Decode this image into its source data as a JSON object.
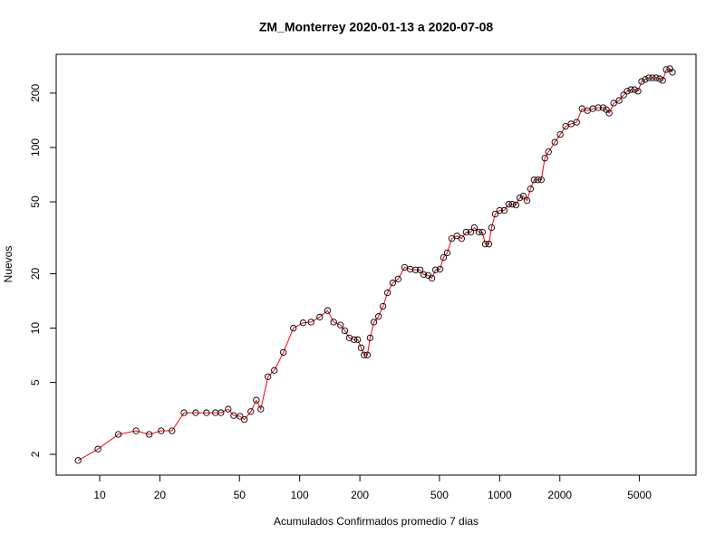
{
  "chart_data": {
    "type": "line",
    "title": "ZM_Monterrey 2020-01-13 a 2020-07-08",
    "x_label": "Acumulados Confirmados promedio  7  dias",
    "y_label": "Nuevos",
    "log_x": true,
    "log_y": true,
    "color": "#ff0000",
    "marker_color": "#000000",
    "xlim": [
      6.06,
      9590
    ],
    "ylim": [
      1.535,
      328
    ],
    "xticks": [
      10,
      20,
      50,
      100,
      200,
      500,
      1000,
      2000,
      5000
    ],
    "yticks": [
      2,
      5,
      10,
      20,
      50,
      100,
      200
    ],
    "x": [
      7.8,
      9.8,
      12.4,
      15.2,
      17.7,
      20.3,
      23.0,
      26.4,
      30.2,
      34.2,
      37.9,
      40.4,
      43.9,
      46.8,
      50.3,
      52.9,
      57.0,
      60.7,
      63.9,
      69.4,
      74.7,
      82.9,
      93,
      104,
      114,
      126,
      138,
      148,
      160,
      168,
      177,
      187,
      195,
      203,
      210,
      218,
      225,
      235,
      248,
      261,
      275,
      292,
      311,
      335,
      357,
      380,
      400,
      417,
      439,
      458,
      478,
      503,
      524,
      547,
      576,
      612,
      645,
      680,
      717,
      747,
      787,
      820,
      847,
      883,
      911,
      950,
      1000,
      1054,
      1110,
      1157,
      1207,
      1260,
      1313,
      1370,
      1427,
      1487,
      1550,
      1615,
      1683,
      1754,
      1888,
      2008,
      2138,
      2275,
      2426,
      2582,
      2748,
      2925,
      3113,
      3292,
      3417,
      3528,
      3717,
      3956,
      4168,
      4345,
      4530,
      4723,
      4918,
      5127,
      5345,
      5572,
      5809,
      6056,
      6312,
      6531,
      6808,
      7100,
      7311
    ],
    "values": [
      1.85,
      2.14,
      2.58,
      2.7,
      2.58,
      2.7,
      2.7,
      3.4,
      3.4,
      3.4,
      3.4,
      3.4,
      3.56,
      3.28,
      3.25,
      3.12,
      3.45,
      3.99,
      3.56,
      5.38,
      5.83,
      7.34,
      10,
      10.7,
      10.8,
      11.5,
      12.5,
      10.8,
      10.4,
      9.68,
      8.83,
      8.63,
      8.63,
      7.78,
      7.1,
      7.1,
      8.83,
      10.8,
      11.6,
      13.2,
      15.7,
      17.8,
      18.7,
      21.7,
      21.2,
      21.0,
      21.0,
      19.8,
      19.6,
      18.9,
      21.0,
      21.2,
      24.6,
      26.1,
      31.3,
      32.4,
      31.3,
      34.0,
      34.0,
      36.0,
      34.0,
      34.0,
      29.2,
      29.2,
      36.0,
      42.8,
      44.8,
      44.8,
      48.5,
      48.5,
      48,
      52.6,
      53.8,
      50.8,
      59.0,
      66.2,
      66.2,
      66.2,
      87.3,
      94.6,
      107,
      118,
      131,
      135,
      138,
      164,
      160,
      164,
      166,
      166,
      162,
      155,
      176,
      182,
      195,
      205,
      209,
      209,
      205,
      232,
      238,
      243,
      243,
      243,
      240,
      235,
      270,
      273,
      261
    ]
  }
}
